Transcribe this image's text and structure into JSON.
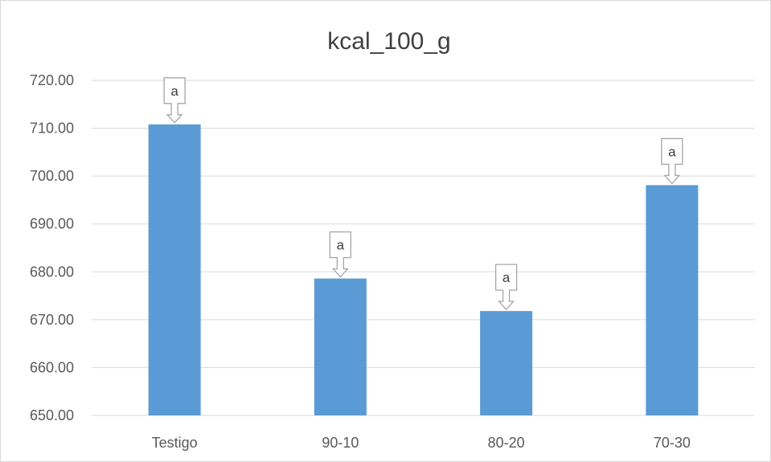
{
  "chart_data": {
    "type": "bar",
    "title": "kcal_100_g",
    "categories": [
      "Testigo",
      "90-10",
      "80-20",
      "70-30"
    ],
    "values": [
      710.8,
      678.6,
      671.8,
      698.1
    ],
    "annotations": [
      "a",
      "a",
      "a",
      "a"
    ],
    "ylim": [
      650,
      720
    ],
    "ytick_step": 10,
    "ytick_labels": [
      "650.00",
      "660.00",
      "670.00",
      "680.00",
      "690.00",
      "700.00",
      "710.00",
      "720.00"
    ],
    "xlabel": "",
    "ylabel": "",
    "grid": true,
    "legend": "none",
    "bar_color": "#5b9bd5",
    "grid_color": "#d9d9d9"
  }
}
